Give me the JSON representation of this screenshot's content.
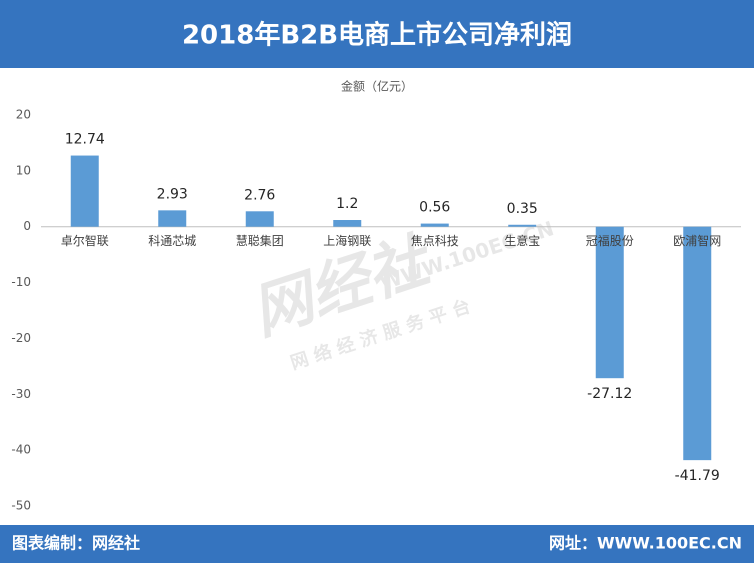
{
  "header": {
    "title": "2018年B2B电商上市公司净利润"
  },
  "footer": {
    "left": "图表编制：网经社",
    "right": "网址：WWW.100EC.CN"
  },
  "watermark": {
    "brand": "网经社",
    "url": "WWW.100EC.CN",
    "slogan": "网 络 经 济 服 务 平 台"
  },
  "chart_data": {
    "type": "bar",
    "y_label": "金额（亿元）",
    "categories": [
      "卓尔智联",
      "科通芯城",
      "慧聪集团",
      "上海钢联",
      "焦点科技",
      "生意宝",
      "冠福股份",
      "欧浦智网"
    ],
    "values": [
      12.74,
      2.93,
      2.76,
      1.2,
      0.56,
      0.35,
      -27.12,
      -41.79
    ],
    "color": "#5b9bd5",
    "ylim": [
      -50,
      20
    ],
    "yticks": [
      -50,
      -40,
      -30,
      -20,
      -10,
      0,
      10,
      20
    ],
    "grid": false
  }
}
